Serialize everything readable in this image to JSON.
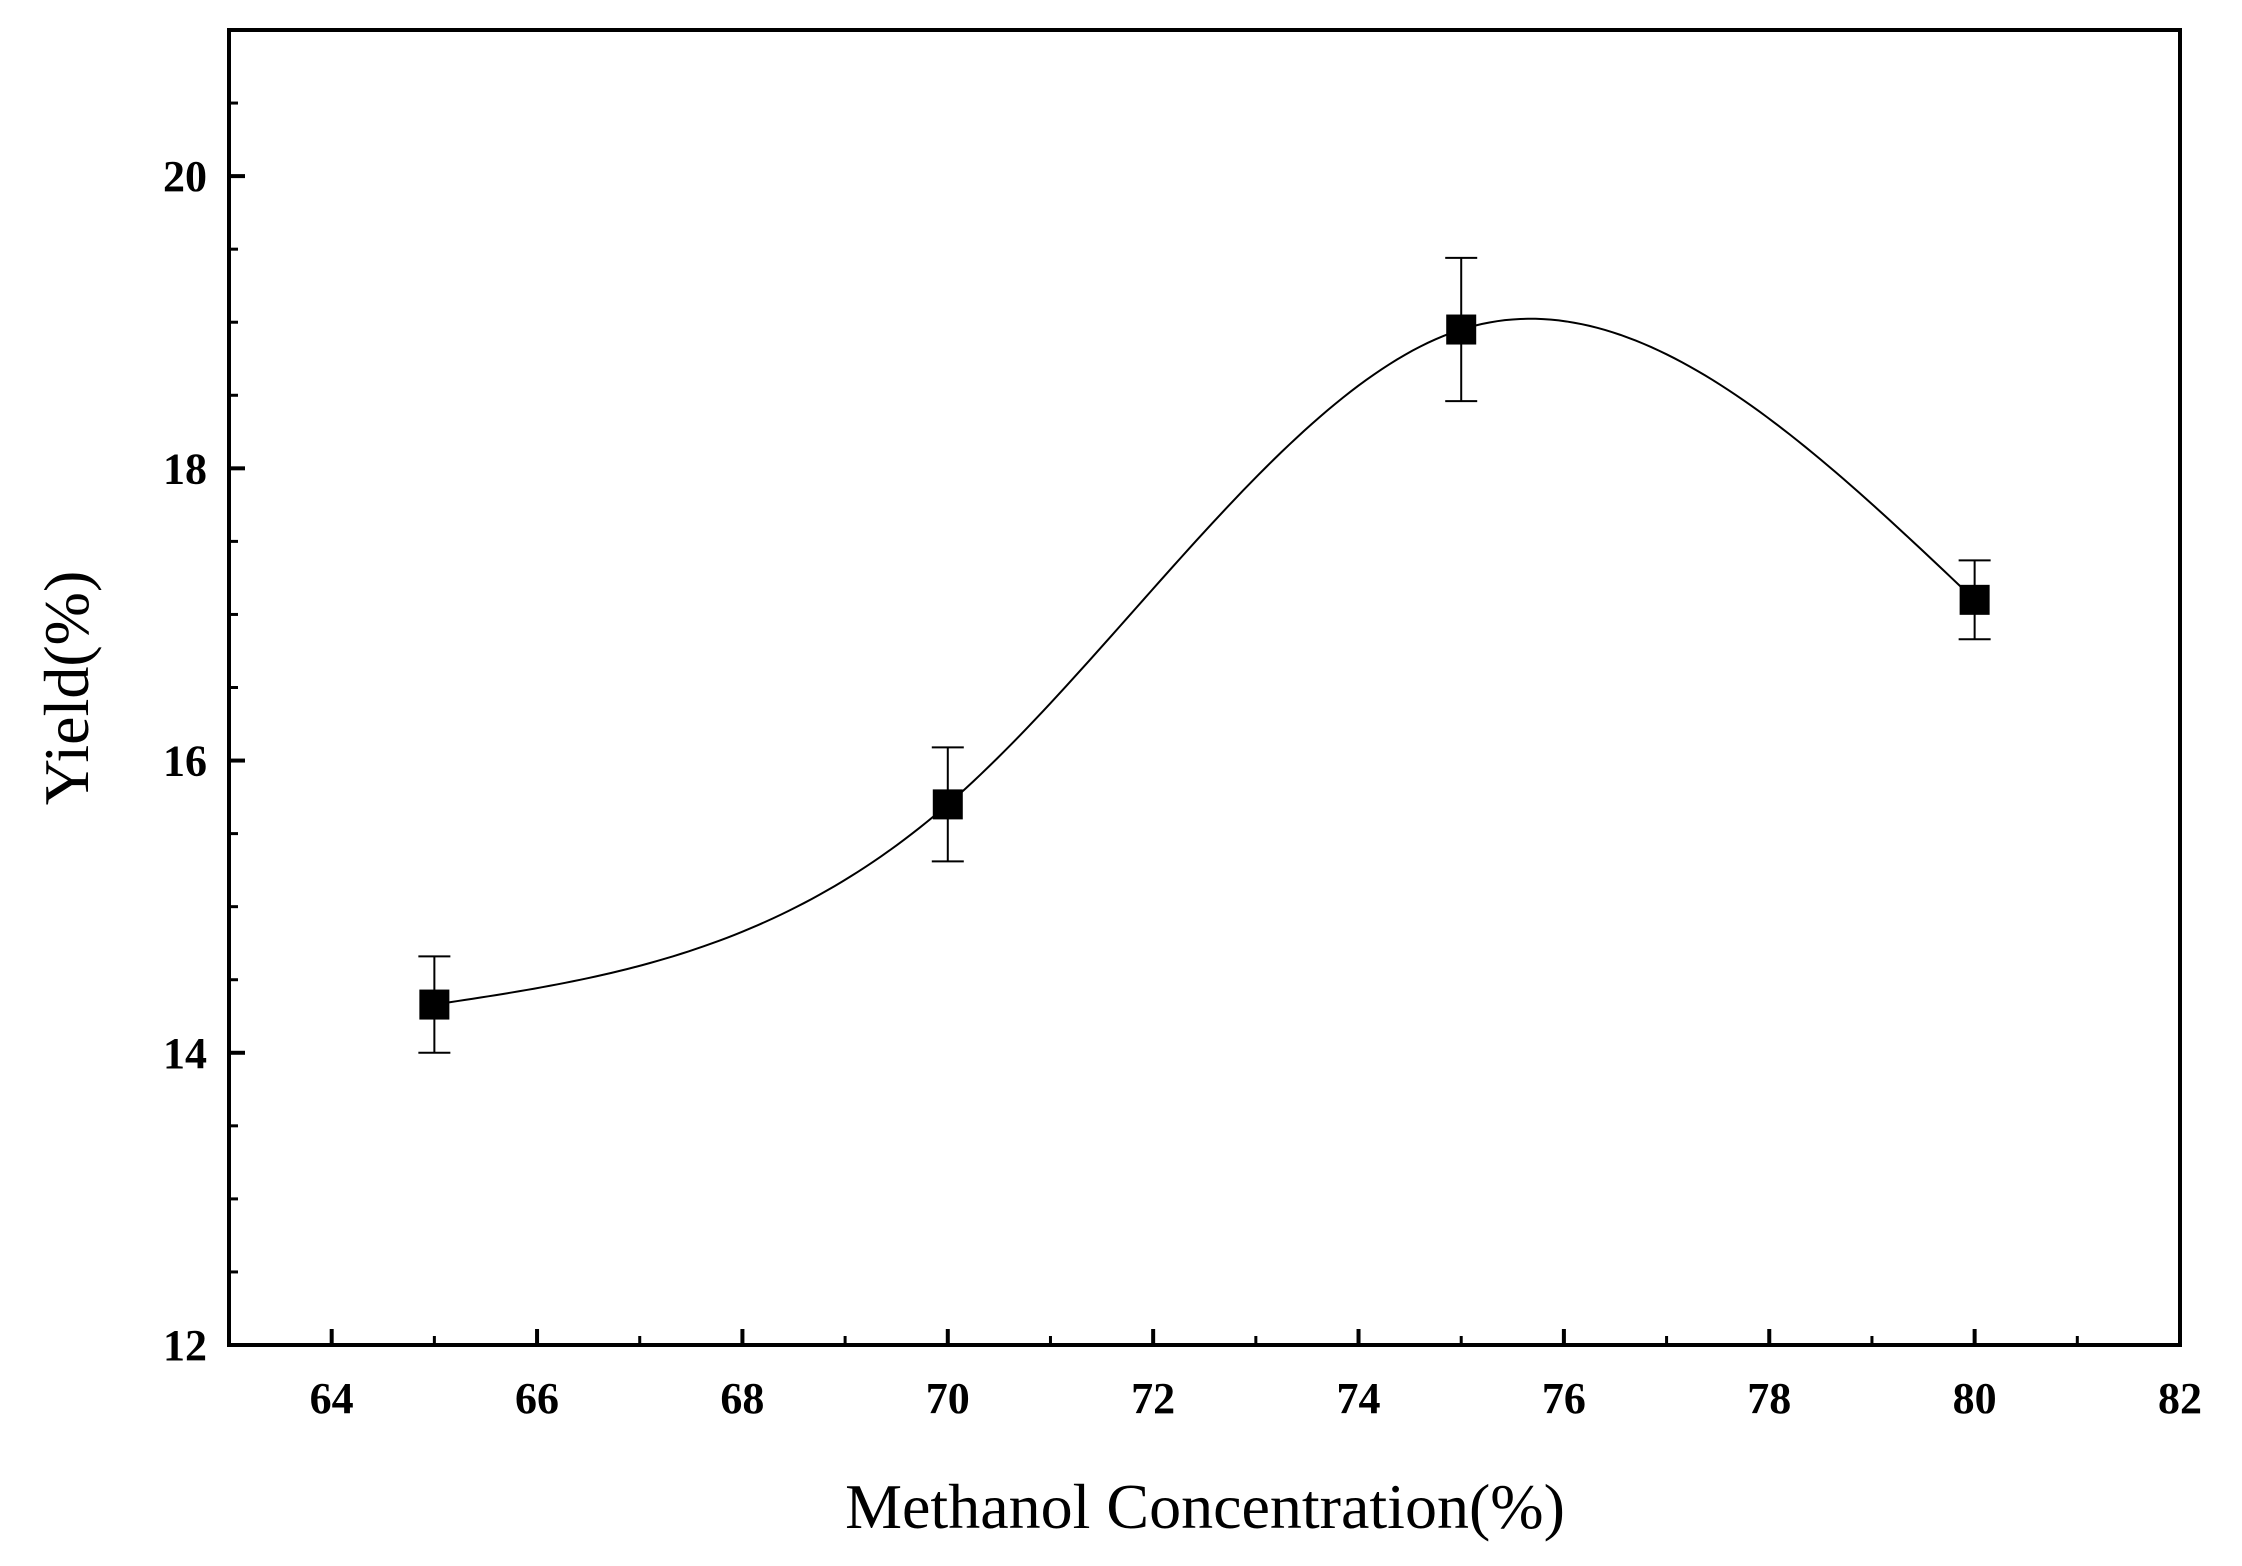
{
  "chart_data": {
    "type": "scatter",
    "title": "",
    "xlabel": "Methanol Concentration(%)",
    "ylabel": "Yield(%)",
    "xlim": [
      63,
      82
    ],
    "ylim": [
      12,
      21
    ],
    "x_ticks": [
      64,
      66,
      68,
      70,
      72,
      74,
      76,
      78,
      80,
      82
    ],
    "y_ticks": [
      12,
      14,
      16,
      18,
      20
    ],
    "x_tick_labels": [
      "64",
      "66",
      "68",
      "70",
      "72",
      "74",
      "76",
      "78",
      "80",
      "82"
    ],
    "y_tick_labels": [
      "12",
      "14",
      "16",
      "18",
      "20"
    ],
    "grid": false,
    "legend": "none",
    "series": [
      {
        "name": "Yield",
        "marker": "square",
        "smooth_line": true,
        "x": [
          65,
          70,
          75,
          80
        ],
        "y": [
          14.33,
          15.7,
          18.95,
          17.1
        ],
        "error": [
          0.33,
          0.39,
          0.49,
          0.27
        ]
      }
    ],
    "colors": {
      "line": "#000000",
      "marker": "#000000"
    }
  }
}
